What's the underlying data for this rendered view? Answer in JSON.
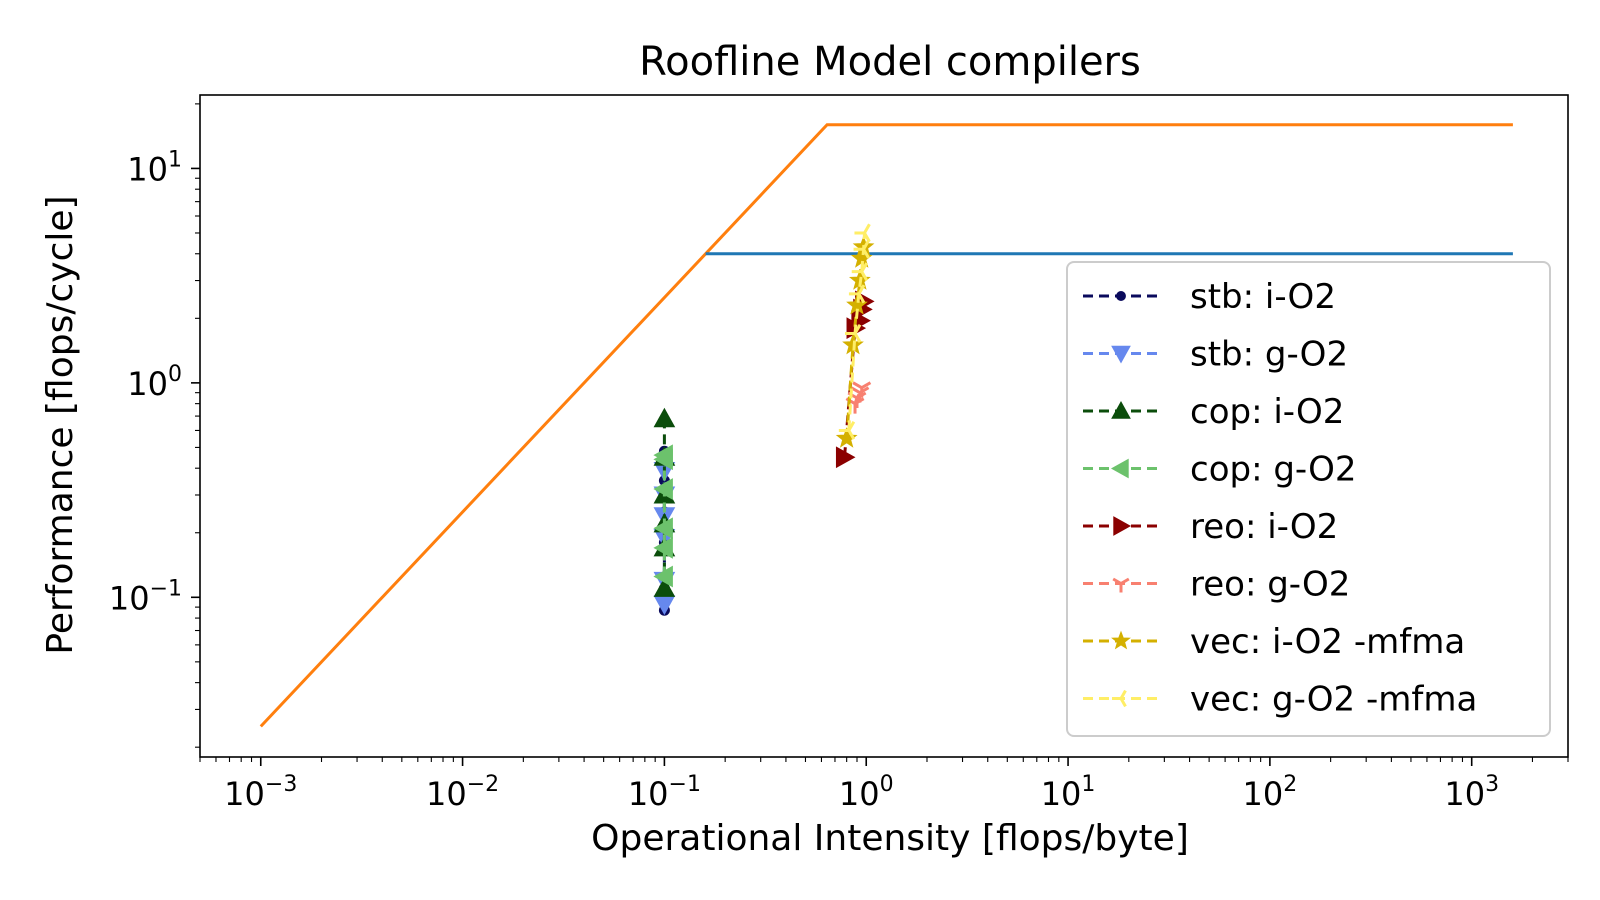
{
  "chart_data": {
    "type": "line",
    "title": "Roofline Model compilers",
    "xlabel": "Operational Intensity [flops/byte]",
    "ylabel": "Performance [flops/cycle]",
    "xscale": "log",
    "yscale": "log",
    "xlim": [
      0.0005,
      3000
    ],
    "ylim": [
      0.018,
      22
    ],
    "x_ticks": [
      {
        "base": "10",
        "exp": "−3",
        "value": 0.001
      },
      {
        "base": "10",
        "exp": "−2",
        "value": 0.01
      },
      {
        "base": "10",
        "exp": "−1",
        "value": 0.1
      },
      {
        "base": "10",
        "exp": "0",
        "value": 1
      },
      {
        "base": "10",
        "exp": "1",
        "value": 10
      },
      {
        "base": "10",
        "exp": "2",
        "value": 100
      },
      {
        "base": "10",
        "exp": "3",
        "value": 1000
      }
    ],
    "y_ticks": [
      {
        "base": "10",
        "exp": "−1",
        "value": 0.1
      },
      {
        "base": "10",
        "exp": "0",
        "value": 1
      },
      {
        "base": "10",
        "exp": "1",
        "value": 10
      }
    ],
    "grid": false,
    "legend_position": "center-right",
    "rooflines": [
      {
        "color": "#ff7f0e",
        "x": [
          0.001,
          0.64,
          1600
        ],
        "y": [
          0.025,
          16,
          16
        ]
      },
      {
        "color": "#1f77b4",
        "x": [
          0.16,
          1600
        ],
        "y": [
          4,
          4
        ]
      }
    ],
    "series": [
      {
        "name": "stb:  i-O2",
        "color": "#0a0a5c",
        "marker": "circle",
        "x": [
          0.1,
          0.1,
          0.1,
          0.1,
          0.1,
          0.1
        ],
        "y": [
          0.087,
          0.11,
          0.18,
          0.25,
          0.35,
          0.48
        ]
      },
      {
        "name": "stb:  g-O2",
        "color": "#6688ee",
        "marker": "triangle-down",
        "x": [
          0.1,
          0.1,
          0.1,
          0.1,
          0.1,
          0.1
        ],
        "y": [
          0.093,
          0.12,
          0.19,
          0.24,
          0.3,
          0.39
        ]
      },
      {
        "name": "cop:  i-O2",
        "color": "#0b4d0b",
        "marker": "triangle-up",
        "x": [
          0.1,
          0.1,
          0.1,
          0.1,
          0.1,
          0.1
        ],
        "y": [
          0.11,
          0.17,
          0.22,
          0.3,
          0.45,
          0.68
        ]
      },
      {
        "name": "cop:  g-O2",
        "color": "#6cc26c",
        "marker": "triangle-left",
        "x": [
          0.1,
          0.1,
          0.1,
          0.1,
          0.1,
          0.1
        ],
        "y": [
          0.125,
          0.17,
          0.21,
          0.32,
          0.44,
          0.46
        ]
      },
      {
        "name": "reo:  i-O2",
        "color": "#8b0000",
        "marker": "triangle-right",
        "x": [
          0.78,
          0.88,
          0.93,
          0.95,
          0.97
        ],
        "y": [
          0.45,
          1.8,
          1.95,
          2.2,
          2.4
        ]
      },
      {
        "name": "reo:  g-O2",
        "color": "#f88070",
        "marker": "tri-down",
        "x": [
          0.88,
          0.9,
          0.93,
          0.95
        ],
        "y": [
          0.8,
          0.85,
          0.9,
          0.95
        ]
      },
      {
        "name": "vec:  i-O2 -mfma",
        "color": "#d4b000",
        "marker": "star",
        "x": [
          0.8,
          0.86,
          0.9,
          0.93,
          0.95,
          0.97
        ],
        "y": [
          0.55,
          1.5,
          2.3,
          3.0,
          3.8,
          4.3
        ]
      },
      {
        "name": "vec:  g-O2 -mfma",
        "color": "#ffee66",
        "marker": "tri-left",
        "x": [
          0.82,
          0.88,
          0.92,
          0.95,
          0.97,
          0.98
        ],
        "y": [
          0.6,
          1.7,
          2.6,
          3.3,
          4.2,
          5.0
        ]
      }
    ]
  }
}
